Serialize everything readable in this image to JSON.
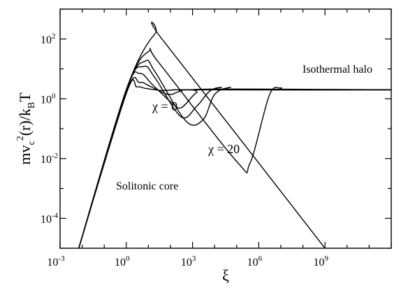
{
  "chart_data": {
    "type": "line",
    "x_scale": "log",
    "y_scale": "log",
    "xlim": [
      0.001,
      1000000000000
    ],
    "ylim": [
      1e-05,
      1000
    ],
    "xlabel": "ξ",
    "ylabel_parts": [
      "mv",
      "c",
      "2",
      "(r)/k",
      "B",
      "T"
    ],
    "x_tick_labels": [
      {
        "value": 0.001,
        "base": "10",
        "exp": "-3"
      },
      {
        "value": 1,
        "base": "10",
        "exp": "0"
      },
      {
        "value": 1000,
        "base": "10",
        "exp": "3"
      },
      {
        "value": 1000000,
        "base": "10",
        "exp": "6"
      },
      {
        "value": 1000000000,
        "base": "10",
        "exp": "9"
      }
    ],
    "y_tick_labels": [
      {
        "value": 0.0001,
        "base": "10",
        "exp": "-4"
      },
      {
        "value": 0.01,
        "base": "10",
        "exp": "-2"
      },
      {
        "value": 1,
        "base": "10",
        "exp": "0"
      },
      {
        "value": 100,
        "base": "10",
        "exp": "2"
      }
    ],
    "annotations": [
      {
        "text": "Isothermal halo",
        "x": 100000,
        "y": 10
      },
      {
        "text": "χ = 0",
        "x": 0.3,
        "y": 0.4
      },
      {
        "text": "χ = 20",
        "x": 3000,
        "y": 0.006
      },
      {
        "text": "Solitonic core",
        "x": 0.02,
        "y": 0.0005
      }
    ],
    "series": [
      {
        "values": [
          [
            0.007,
            1e-05
          ],
          [
            1,
            1.5
          ],
          [
            3,
            2.5
          ],
          [
            8,
            2.2
          ],
          [
            40,
            1.9
          ],
          [
            200,
            2.0
          ],
          [
            1000,
            2.0
          ],
          [
            1000000000000,
            2.0
          ]
        ]
      },
      {
        "values": [
          [
            0.007,
            1e-05
          ],
          [
            1,
            1.6
          ],
          [
            4,
            3.5
          ],
          [
            12,
            2.6
          ],
          [
            80,
            1.4
          ],
          [
            300,
            1.8
          ],
          [
            2000,
            2.0
          ],
          [
            1000000000000,
            2.0
          ]
        ]
      },
      {
        "values": [
          [
            0.007,
            1e-05
          ],
          [
            1,
            1.8
          ],
          [
            4,
            7
          ],
          [
            15,
            3
          ],
          [
            100,
            0.8
          ],
          [
            300,
            0.5
          ],
          [
            1500,
            1.6
          ],
          [
            6000,
            2.1
          ],
          [
            1000000000000,
            2.0
          ]
        ]
      },
      {
        "values": [
          [
            0.007,
            1e-05
          ],
          [
            1,
            2
          ],
          [
            6,
            12
          ],
          [
            20,
            5
          ],
          [
            300,
            0.25
          ],
          [
            1500,
            0.55
          ],
          [
            6000,
            1.8
          ],
          [
            20000,
            2.4
          ],
          [
            50000,
            2.0
          ],
          [
            1000000000000,
            2.0
          ]
        ]
      },
      {
        "values": [
          [
            0.007,
            1e-05
          ],
          [
            1,
            2
          ],
          [
            7,
            18
          ],
          [
            20,
            8
          ],
          [
            500,
            0.18
          ],
          [
            3000,
            0.2
          ],
          [
            10000,
            1.4
          ],
          [
            50000,
            2.4
          ],
          [
            150000,
            2.0
          ],
          [
            1000000000000,
            2.0
          ]
        ]
      },
      {
        "values": [
          [
            0.007,
            1e-05
          ],
          [
            1,
            2
          ],
          [
            10,
            38
          ],
          [
            30,
            16
          ],
          [
            100000,
            0.008
          ],
          [
            400000,
            0.007
          ],
          [
            3000000,
            1.3
          ],
          [
            10000000,
            2.3
          ],
          [
            30000000,
            2.0
          ],
          [
            1000000000000,
            2.0
          ]
        ]
      },
      {
        "values": [
          [
            0.007,
            1e-05
          ],
          [
            1,
            2
          ],
          [
            20,
            150
          ],
          [
            60,
            70
          ],
          [
            1000000000,
            1e-05
          ]
        ]
      }
    ]
  }
}
